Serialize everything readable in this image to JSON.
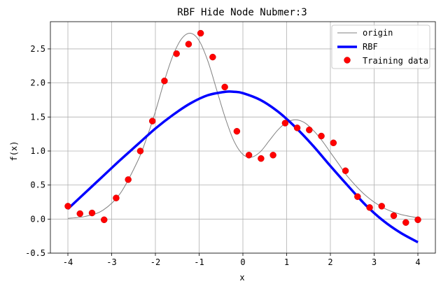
{
  "chart_data": {
    "type": "line",
    "title": "RBF Hide Node Nubmer:3",
    "xlabel": "x",
    "ylabel": "f(x)",
    "xlim": [
      -4.4,
      4.4
    ],
    "ylim": [
      -0.5,
      2.9
    ],
    "xticks": [
      -4,
      -3,
      -2,
      -1,
      0,
      1,
      2,
      3,
      4
    ],
    "xtick_labels": [
      "-4",
      "-3",
      "-2",
      "-1",
      "0",
      "1",
      "2",
      "3",
      "4"
    ],
    "yticks": [
      -0.5,
      0.0,
      0.5,
      1.0,
      1.5,
      2.0,
      2.5
    ],
    "ytick_labels": [
      "-0.5",
      "0.0",
      "0.5",
      "1.0",
      "1.5",
      "2.0",
      "2.5"
    ],
    "grid": true,
    "legend_position": "top-right",
    "series": [
      {
        "name": "origin",
        "kind": "line",
        "color": "#808080",
        "x": [
          -4.0,
          -3.6,
          -3.2,
          -2.8,
          -2.4,
          -2.2,
          -2.0,
          -1.8,
          -1.6,
          -1.4,
          -1.2,
          -1.0,
          -0.8,
          -0.6,
          -0.4,
          -0.2,
          0.0,
          0.2,
          0.4,
          0.6,
          0.8,
          1.0,
          1.2,
          1.4,
          1.6,
          1.8,
          2.0,
          2.2,
          2.4,
          2.8,
          3.2,
          3.6,
          4.0
        ],
        "y": [
          0.01,
          0.04,
          0.13,
          0.38,
          0.86,
          1.19,
          1.58,
          2.02,
          2.4,
          2.65,
          2.73,
          2.62,
          2.32,
          1.9,
          1.48,
          1.14,
          0.95,
          0.91,
          0.99,
          1.15,
          1.31,
          1.42,
          1.46,
          1.42,
          1.31,
          1.16,
          0.98,
          0.8,
          0.62,
          0.35,
          0.17,
          0.07,
          0.02
        ]
      },
      {
        "name": "RBF",
        "kind": "line",
        "color": "#0000ff",
        "x": [
          -4.0,
          -3.6,
          -3.2,
          -2.8,
          -2.4,
          -2.0,
          -1.6,
          -1.2,
          -0.8,
          -0.4,
          -0.2,
          0.0,
          0.4,
          0.8,
          1.2,
          1.6,
          2.0,
          2.4,
          2.8,
          3.2,
          3.6,
          4.0
        ],
        "y": [
          0.15,
          0.39,
          0.63,
          0.87,
          1.1,
          1.33,
          1.53,
          1.7,
          1.82,
          1.87,
          1.87,
          1.85,
          1.75,
          1.58,
          1.35,
          1.08,
          0.78,
          0.49,
          0.21,
          -0.02,
          -0.2,
          -0.34
        ]
      },
      {
        "name": "Training data",
        "kind": "scatter",
        "color": "#ff0000",
        "x": [
          -4.0,
          -3.724,
          -3.448,
          -3.172,
          -2.897,
          -2.621,
          -2.345,
          -2.069,
          -1.793,
          -1.517,
          -1.241,
          -0.966,
          -0.69,
          -0.414,
          -0.138,
          0.138,
          0.414,
          0.69,
          0.966,
          1.241,
          1.517,
          1.793,
          2.069,
          2.345,
          2.621,
          2.897,
          3.172,
          3.448,
          3.724,
          4.0
        ],
        "y": [
          0.19,
          0.08,
          0.09,
          -0.01,
          0.31,
          0.58,
          1.0,
          1.44,
          2.03,
          2.43,
          2.57,
          2.73,
          2.38,
          1.94,
          1.29,
          0.94,
          0.89,
          0.94,
          1.41,
          1.34,
          1.31,
          1.22,
          1.12,
          0.71,
          0.33,
          0.17,
          0.19,
          0.05,
          -0.05,
          -0.01
        ]
      }
    ]
  }
}
